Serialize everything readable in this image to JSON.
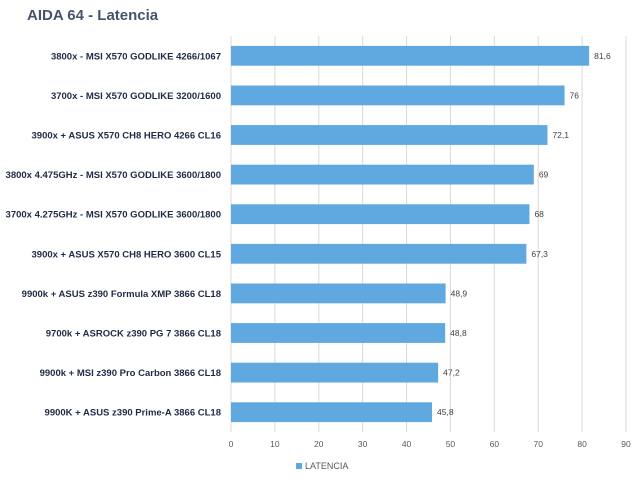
{
  "chart_data": {
    "type": "bar",
    "orientation": "horizontal",
    "title": "AIDA 64 - Latencia",
    "categories": [
      "3800x - MSI X570 GODLIKE 4266/1067",
      "3700x - MSI X570 GODLIKE 3200/1600",
      "3900x + ASUS X570 CH8 HERO 4266 CL16",
      "3800x 4.475GHz - MSI X570 GODLIKE 3600/1800",
      "3700x 4.275GHz - MSI X570 GODLIKE 3600/1800",
      "3900x + ASUS X570 CH8 HERO 3600 CL15",
      "9900k + ASUS z390 Formula XMP 3866 CL18",
      "9700k + ASROCK z390 PG 7 3866 CL18",
      "9900k + MSI z390 Pro Carbon 3866 CL18",
      "9900K + ASUS z390 Prime-A 3866 CL18"
    ],
    "series": [
      {
        "name": "LATENCIA",
        "values": [
          81.6,
          76,
          72.1,
          69,
          68,
          67.3,
          48.9,
          48.8,
          47.2,
          45.8
        ],
        "labels": [
          "81,6",
          "76",
          "72,1",
          "69",
          "68",
          "67,3",
          "48,9",
          "48,8",
          "47,2",
          "45,8"
        ]
      }
    ],
    "xlim": [
      0,
      90
    ],
    "xticks": [
      0,
      10,
      20,
      30,
      40,
      50,
      60,
      70,
      80,
      90
    ],
    "xlabel": "",
    "ylabel": "",
    "grid": true,
    "legend_position": "bottom",
    "colors": {
      "bar": "#5fa8e0",
      "grid": "#d9d9d9",
      "title": "#44546a"
    }
  }
}
